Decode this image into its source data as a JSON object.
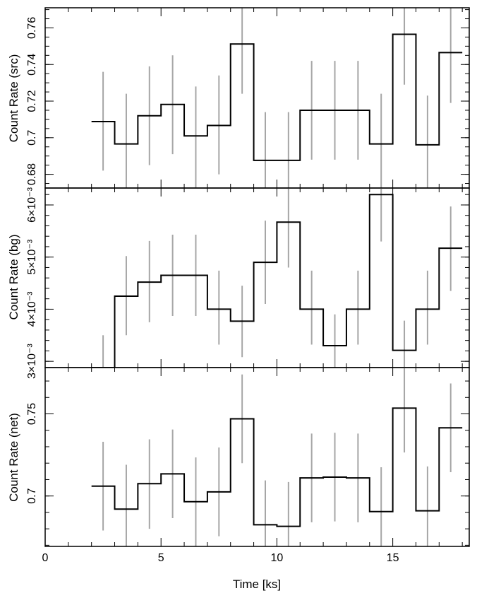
{
  "chart_data": {
    "type": "step-with-errorbars",
    "x_axis": {
      "label": "Time [ks]",
      "range": [
        0,
        18.3
      ],
      "major_ticks": [
        0,
        5,
        10,
        15
      ],
      "minor_step": 1
    },
    "bin_edges": [
      2,
      3,
      4,
      5,
      6,
      7,
      8,
      9,
      10,
      11,
      12,
      13,
      14,
      15,
      16,
      17,
      18
    ],
    "error_x": [
      2.5,
      3.5,
      4.5,
      5.5,
      6.5,
      7.5,
      8.5,
      9.5,
      10.5,
      11.5,
      12.5,
      13.5,
      14.5,
      15.5,
      16.5,
      17.5
    ],
    "panels": [
      {
        "id": "src",
        "ylabel": "Count Rate (src)",
        "ylim": [
          0.6725,
          0.771
        ],
        "major_ticks": [
          0.68,
          0.7,
          0.72,
          0.74,
          0.76
        ],
        "tick_labels": [
          "0.68",
          "0.7",
          "0.72",
          "0.74",
          "0.76"
        ],
        "minor_step": 0.005,
        "values": [
          0.7088,
          0.6966,
          0.712,
          0.7182,
          0.701,
          0.7067,
          0.7512,
          0.6876,
          0.6876,
          0.715,
          0.715,
          0.715,
          0.6966,
          0.7565,
          0.6961,
          0.7465
        ],
        "err_lo": [
          0.682,
          0.671,
          0.685,
          0.691,
          0.672,
          0.68,
          0.724,
          0.662,
          0.662,
          0.688,
          0.688,
          0.688,
          0.671,
          0.729,
          0.67,
          0.719
        ],
        "err_hi": [
          0.736,
          0.724,
          0.739,
          0.745,
          0.728,
          0.734,
          0.778,
          0.714,
          0.714,
          0.742,
          0.742,
          0.742,
          0.724,
          0.784,
          0.723,
          0.773
        ]
      },
      {
        "id": "bg",
        "ylabel": "Count Rate (bg)",
        "ylim": [
          0.00288,
          0.006325
        ],
        "major_ticks": [
          0.003,
          0.004,
          0.005,
          0.006
        ],
        "tick_labels": [
          "3×10⁻³",
          "4×10⁻³",
          "5×10⁻³",
          "6×10⁻³"
        ],
        "minor_step": 0.0002,
        "values": [
          0.00288,
          0.00425,
          0.00452,
          0.00465,
          0.00465,
          0.004,
          0.00377,
          0.0049,
          0.00567,
          0.004,
          0.0033,
          0.004,
          0.0062,
          0.00321,
          0.004,
          0.00517
        ],
        "err_lo": [
          0.0027,
          0.0035,
          0.00375,
          0.00387,
          0.00387,
          0.00332,
          0.00308,
          0.0041,
          0.0048,
          0.00332,
          0.0026,
          0.00332,
          0.0053,
          0.0025,
          0.00332,
          0.00435
        ],
        "err_hi": [
          0.0035,
          0.00502,
          0.00531,
          0.00543,
          0.00543,
          0.00474,
          0.00445,
          0.0057,
          0.00655,
          0.00474,
          0.0039,
          0.00474,
          0.007,
          0.00378,
          0.00474,
          0.00597
        ]
      },
      {
        "id": "net",
        "ylabel": "Count Rate (net)",
        "ylim": [
          0.6693,
          0.7782
        ],
        "major_ticks": [
          0.7,
          0.75
        ],
        "tick_labels": [
          "0.7",
          "0.75"
        ],
        "minor_step": 0.01,
        "values": [
          0.706,
          0.692,
          0.7075,
          0.7135,
          0.6965,
          0.7025,
          0.747,
          0.6825,
          0.6815,
          0.711,
          0.7115,
          0.711,
          0.6905,
          0.7535,
          0.691,
          0.7415
        ],
        "err_lo": [
          0.679,
          0.665,
          0.68,
          0.6865,
          0.669,
          0.6755,
          0.72,
          0.6555,
          0.655,
          0.684,
          0.6845,
          0.684,
          0.663,
          0.7265,
          0.664,
          0.7145
        ],
        "err_hi": [
          0.733,
          0.719,
          0.7345,
          0.7405,
          0.7235,
          0.7295,
          0.774,
          0.7095,
          0.7085,
          0.738,
          0.7385,
          0.738,
          0.7175,
          0.7805,
          0.718,
          0.7685
        ]
      }
    ],
    "colors": {
      "step": "#000000",
      "error": "#a6a6a6",
      "axis": "#000000"
    }
  }
}
